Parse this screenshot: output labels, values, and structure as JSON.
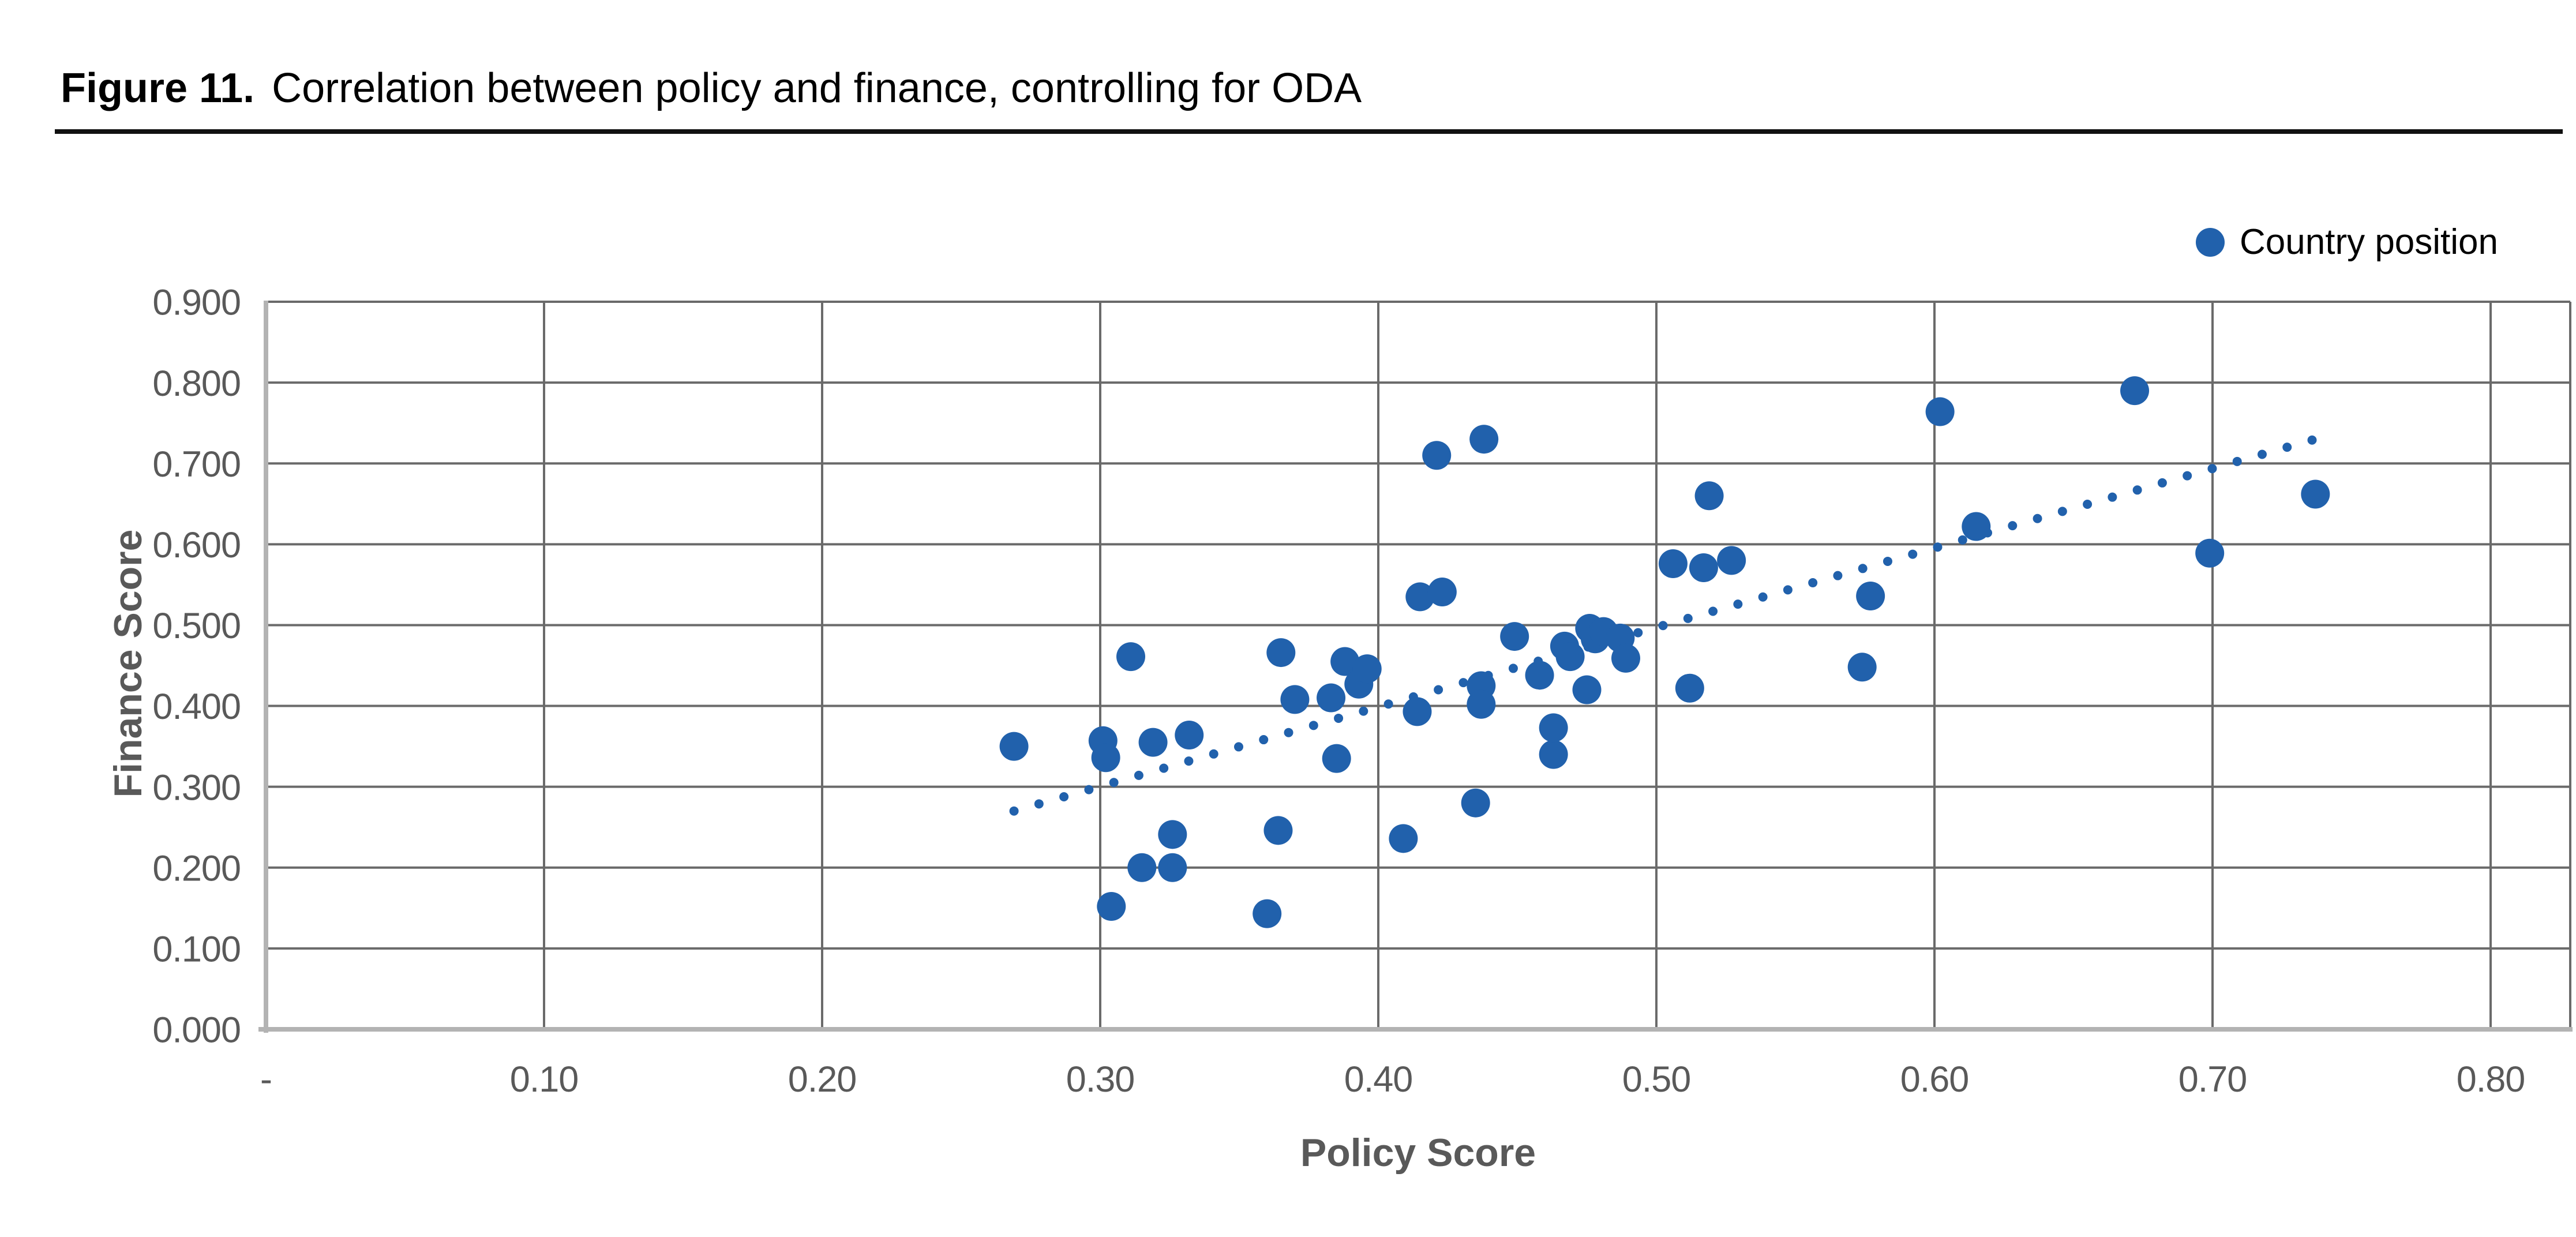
{
  "figure": {
    "label": "Figure 11.",
    "title": "Correlation between policy and finance, controlling for ODA"
  },
  "legend": {
    "marker": "circle",
    "label": "Country position"
  },
  "colors": {
    "point_blue": "#2161AC",
    "trendline_blue": "#2161AC",
    "gridline": "#6A6A6A",
    "axis_line": "#B3B3B3",
    "tick_text": "#595959",
    "axis_title_text": "#595959",
    "title_text": "#000000",
    "rule": "#111111",
    "background": "#FFFFFF"
  },
  "chart_data": {
    "type": "scatter",
    "title": "",
    "xlabel": "Policy Score",
    "ylabel": "Finance Score",
    "grid": true,
    "legend_position": "top-right",
    "xlim": [
      0,
      0.8286
    ],
    "ylim": [
      0,
      0.9
    ],
    "x_ticks": [
      {
        "value": 0.0,
        "label": "-"
      },
      {
        "value": 0.1,
        "label": "0.10"
      },
      {
        "value": 0.2,
        "label": "0.20"
      },
      {
        "value": 0.3,
        "label": "0.30"
      },
      {
        "value": 0.4,
        "label": "0.40"
      },
      {
        "value": 0.5,
        "label": "0.50"
      },
      {
        "value": 0.6,
        "label": "0.60"
      },
      {
        "value": 0.7,
        "label": "0.70"
      },
      {
        "value": 0.8,
        "label": "0.80"
      }
    ],
    "y_ticks": [
      {
        "value": 0.0,
        "label": "0.000"
      },
      {
        "value": 0.1,
        "label": "0.100"
      },
      {
        "value": 0.2,
        "label": "0.200"
      },
      {
        "value": 0.3,
        "label": "0.300"
      },
      {
        "value": 0.4,
        "label": "0.400"
      },
      {
        "value": 0.5,
        "label": "0.500"
      },
      {
        "value": 0.6,
        "label": "0.600"
      },
      {
        "value": 0.7,
        "label": "0.700"
      },
      {
        "value": 0.8,
        "label": "0.800"
      },
      {
        "value": 0.9,
        "label": "0.900"
      }
    ],
    "series": [
      {
        "name": "Country position",
        "marker": "circle",
        "points": [
          [
            0.269,
            0.35
          ],
          [
            0.301,
            0.357
          ],
          [
            0.302,
            0.336
          ],
          [
            0.304,
            0.152
          ],
          [
            0.311,
            0.461
          ],
          [
            0.315,
            0.2
          ],
          [
            0.319,
            0.355
          ],
          [
            0.326,
            0.2
          ],
          [
            0.326,
            0.241
          ],
          [
            0.332,
            0.364
          ],
          [
            0.36,
            0.143
          ],
          [
            0.364,
            0.246
          ],
          [
            0.365,
            0.466
          ],
          [
            0.37,
            0.408
          ],
          [
            0.383,
            0.41
          ],
          [
            0.385,
            0.335
          ],
          [
            0.388,
            0.455
          ],
          [
            0.393,
            0.427
          ],
          [
            0.396,
            0.446
          ],
          [
            0.409,
            0.236
          ],
          [
            0.414,
            0.393
          ],
          [
            0.415,
            0.535
          ],
          [
            0.421,
            0.71
          ],
          [
            0.423,
            0.541
          ],
          [
            0.435,
            0.28
          ],
          [
            0.438,
            0.73
          ],
          [
            0.437,
            0.425
          ],
          [
            0.437,
            0.402
          ],
          [
            0.449,
            0.486
          ],
          [
            0.458,
            0.438
          ],
          [
            0.463,
            0.34
          ],
          [
            0.463,
            0.373
          ],
          [
            0.467,
            0.474
          ],
          [
            0.469,
            0.461
          ],
          [
            0.475,
            0.42
          ],
          [
            0.476,
            0.496
          ],
          [
            0.478,
            0.483
          ],
          [
            0.481,
            0.492
          ],
          [
            0.487,
            0.484
          ],
          [
            0.489,
            0.459
          ],
          [
            0.506,
            0.576
          ],
          [
            0.512,
            0.422
          ],
          [
            0.517,
            0.571
          ],
          [
            0.519,
            0.66
          ],
          [
            0.527,
            0.58
          ],
          [
            0.574,
            0.448
          ],
          [
            0.577,
            0.536
          ],
          [
            0.602,
            0.764
          ],
          [
            0.615,
            0.622
          ],
          [
            0.672,
            0.79
          ],
          [
            0.699,
            0.589
          ],
          [
            0.737,
            0.662
          ]
        ]
      }
    ],
    "trendline": {
      "type": "linear",
      "style": "dotted",
      "start": {
        "x": 0.269,
        "y": 0.27
      },
      "end": {
        "x": 0.742,
        "y": 0.735
      }
    }
  }
}
